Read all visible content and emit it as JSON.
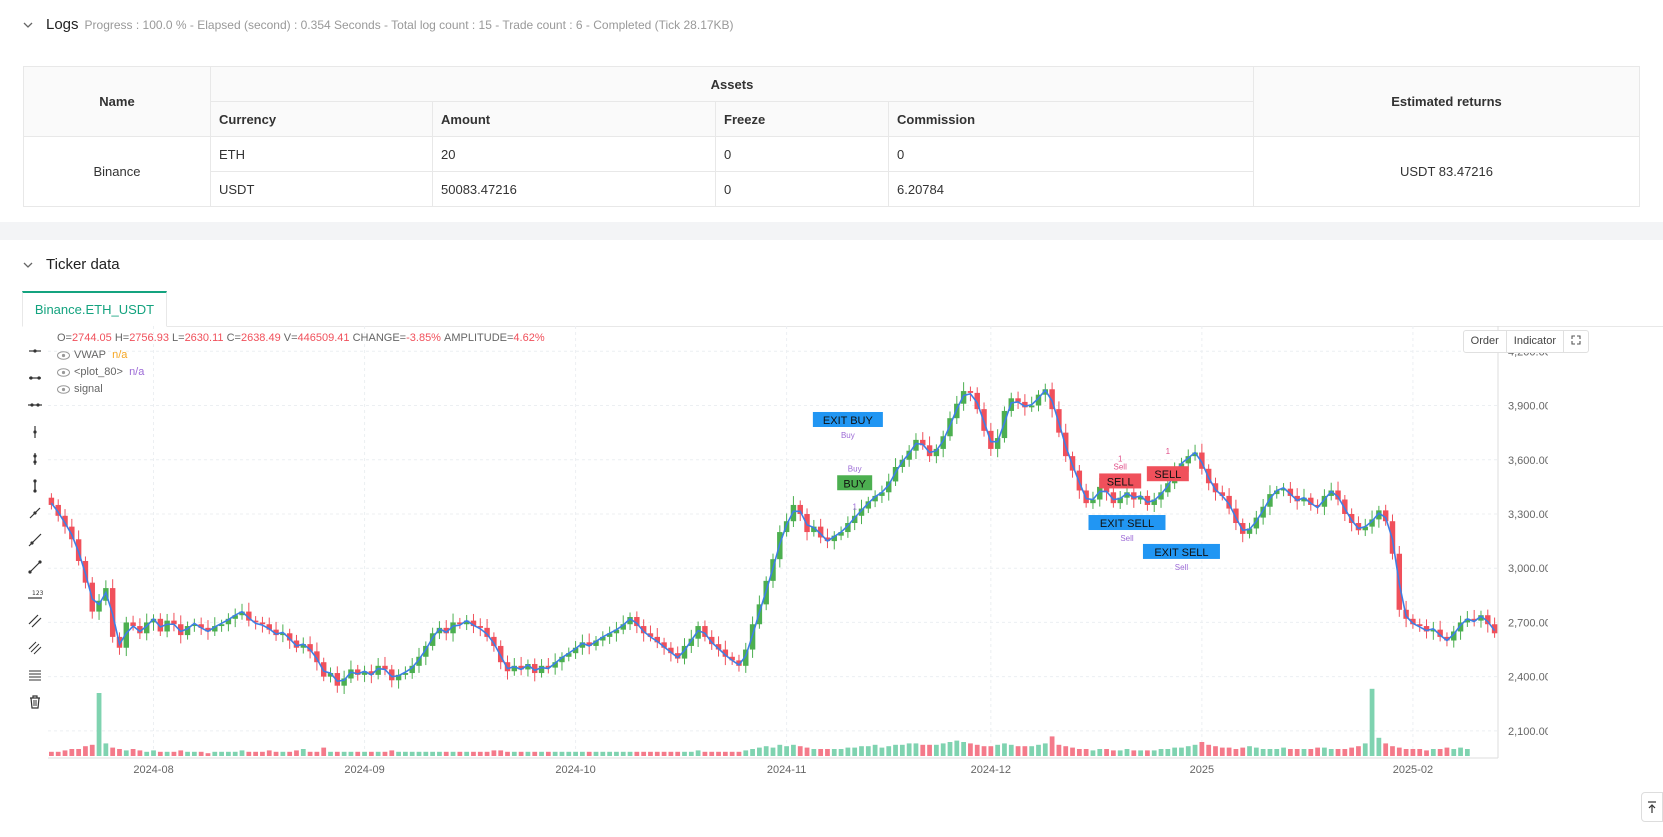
{
  "logs": {
    "title": "Logs",
    "stats": "Progress : 100.0 % - Elapsed (second) : 0.354  Seconds - Total log count : 15 - Trade count : 6 - Completed (Tick 28.17KB)"
  },
  "assets_table": {
    "col_name": "Name",
    "col_assets": "Assets",
    "col_returns": "Estimated returns",
    "col_currency": "Currency",
    "col_amount": "Amount",
    "col_freeze": "Freeze",
    "col_commission": "Commission",
    "exchange": "Binance",
    "returns": "USDT 83.47216",
    "rows": [
      {
        "currency": "ETH",
        "amount": "20",
        "freeze": "0",
        "commission": "0"
      },
      {
        "currency": "USDT",
        "amount": "50083.47216",
        "freeze": "0",
        "commission": "6.20784"
      }
    ]
  },
  "ticker": {
    "title": "Ticker data",
    "tab": "Binance.ETH_USDT"
  },
  "chart_controls": {
    "order": "Order",
    "indicator": "Indicator"
  },
  "legend": {
    "o_label": "O=",
    "o": "2744.05",
    "h_label": "H=",
    "h": "2756.93",
    "l_label": "L=",
    "l": "2630.11",
    "c_label": "C=",
    "c": "2638.49",
    "v_label": "V=",
    "v": "446509.41",
    "change_label": "CHANGE=",
    "change": "-3.85%",
    "amp_label": "AMPLITUDE=",
    "amp": "4.62%",
    "series": [
      {
        "name": "VWAP",
        "value": "n/a",
        "color": "#f5a623"
      },
      {
        "name": "<plot_80>",
        "value": "n/a",
        "color": "#9c6ad6"
      },
      {
        "name": "signal",
        "value": ""
      }
    ]
  },
  "chart_data": {
    "type": "candlestick",
    "symbol": "Binance.ETH_USDT",
    "y_ticks": [
      "4,200.00",
      "3,900.00",
      "3,600.00",
      "3,300.00",
      "3,000.00",
      "2,700.00",
      "2,400.00",
      "2,100.00"
    ],
    "ylim": [
      1950,
      4340
    ],
    "x_ticks": [
      "2024-08",
      "2024-09",
      "2024-10",
      "2024-11",
      "2024-12",
      "2025",
      "2025-02"
    ],
    "x_tick_index": [
      15,
      46,
      77,
      108,
      138,
      169,
      200
    ],
    "closes": [
      3350,
      3290,
      3230,
      3160,
      3040,
      2920,
      2760,
      2820,
      2890,
      2620,
      2560,
      2700,
      2680,
      2640,
      2700,
      2720,
      2650,
      2710,
      2690,
      2630,
      2680,
      2690,
      2670,
      2650,
      2680,
      2690,
      2720,
      2740,
      2760,
      2710,
      2700,
      2690,
      2660,
      2630,
      2640,
      2600,
      2560,
      2580,
      2540,
      2480,
      2400,
      2420,
      2350,
      2390,
      2440,
      2410,
      2430,
      2410,
      2460,
      2440,
      2380,
      2410,
      2420,
      2460,
      2510,
      2570,
      2640,
      2670,
      2640,
      2700,
      2690,
      2710,
      2680,
      2670,
      2620,
      2570,
      2480,
      2430,
      2460,
      2440,
      2470,
      2420,
      2460,
      2450,
      2480,
      2510,
      2530,
      2560,
      2590,
      2570,
      2600,
      2620,
      2640,
      2660,
      2690,
      2730,
      2680,
      2640,
      2620,
      2590,
      2560,
      2530,
      2500,
      2570,
      2610,
      2680,
      2620,
      2580,
      2550,
      2510,
      2490,
      2460,
      2550,
      2690,
      2800,
      2930,
      3050,
      3200,
      3260,
      3350,
      3300,
      3200,
      3230,
      3170,
      3150,
      3180,
      3200,
      3250,
      3290,
      3330,
      3370,
      3400,
      3420,
      3480,
      3560,
      3600,
      3650,
      3710,
      3680,
      3620,
      3660,
      3730,
      3830,
      3910,
      3980,
      3970,
      3880,
      3760,
      3660,
      3720,
      3870,
      3940,
      3920,
      3890,
      3900,
      3960,
      3990,
      3880,
      3750,
      3620,
      3540,
      3430,
      3360,
      3380,
      3450,
      3420,
      3360,
      3390,
      3420,
      3380,
      3400,
      3350,
      3380,
      3420,
      3470,
      3560,
      3580,
      3620,
      3640,
      3550,
      3470,
      3420,
      3400,
      3330,
      3250,
      3190,
      3220,
      3280,
      3340,
      3410,
      3430,
      3440,
      3400,
      3370,
      3390,
      3350,
      3340,
      3400,
      3430,
      3380,
      3300,
      3250,
      3210,
      3230,
      3270,
      3320,
      3260,
      3080,
      2770,
      2720,
      2690,
      2680,
      2650,
      2660,
      2620,
      2600,
      2650,
      2700,
      2720,
      2710,
      2740,
      2690,
      2640
    ],
    "volumes": [
      0.3,
      0.3,
      0.4,
      0.5,
      0.5,
      0.7,
      0.8,
      4.5,
      0.9,
      0.6,
      0.5,
      0.4,
      0.5,
      0.4,
      0.3,
      0.4,
      0.3,
      0.3,
      0.3,
      0.4,
      0.3,
      0.3,
      0.3,
      0.2,
      0.3,
      0.3,
      0.3,
      0.3,
      0.4,
      0.3,
      0.3,
      0.3,
      0.4,
      0.3,
      0.3,
      0.3,
      0.4,
      0.5,
      0.3,
      0.3,
      0.6,
      0.3,
      0.3,
      0.3,
      0.3,
      0.3,
      0.3,
      0.3,
      0.3,
      0.3,
      0.4,
      0.3,
      0.3,
      0.3,
      0.3,
      0.3,
      0.3,
      0.3,
      0.3,
      0.3,
      0.3,
      0.3,
      0.3,
      0.3,
      0.3,
      0.4,
      0.4,
      0.3,
      0.3,
      0.3,
      0.3,
      0.3,
      0.3,
      0.3,
      0.3,
      0.3,
      0.3,
      0.3,
      0.3,
      0.3,
      0.3,
      0.3,
      0.3,
      0.3,
      0.3,
      0.3,
      0.3,
      0.3,
      0.3,
      0.3,
      0.3,
      0.3,
      0.3,
      0.3,
      0.3,
      0.4,
      0.3,
      0.3,
      0.3,
      0.3,
      0.3,
      0.3,
      0.4,
      0.5,
      0.6,
      0.7,
      0.6,
      0.8,
      0.7,
      0.8,
      0.7,
      0.6,
      0.5,
      0.5,
      0.5,
      0.5,
      0.5,
      0.6,
      0.6,
      0.7,
      0.7,
      0.8,
      0.6,
      0.7,
      0.8,
      0.8,
      0.9,
      0.9,
      0.8,
      0.8,
      0.8,
      0.9,
      1.0,
      1.1,
      1.0,
      0.9,
      0.8,
      0.7,
      0.7,
      0.8,
      0.9,
      0.8,
      0.7,
      0.7,
      0.7,
      0.8,
      0.9,
      1.4,
      0.8,
      0.7,
      0.6,
      0.5,
      0.5,
      0.4,
      0.5,
      0.5,
      0.4,
      0.4,
      0.5,
      0.4,
      0.4,
      0.4,
      0.4,
      0.5,
      0.5,
      0.6,
      0.6,
      0.7,
      0.8,
      1.0,
      0.8,
      0.7,
      0.6,
      0.6,
      0.5,
      0.6,
      0.7,
      0.6,
      0.5,
      0.5,
      0.5,
      0.6,
      0.5,
      0.5,
      0.5,
      0.5,
      0.6,
      0.6,
      0.5,
      0.5,
      0.5,
      0.6,
      0.7,
      0.9,
      4.8,
      1.3,
      0.9,
      0.7,
      0.6,
      0.5,
      0.5,
      0.5,
      0.4,
      0.5,
      0.5,
      0.6,
      0.5,
      0.6,
      0.5
    ],
    "vwap_color": "#3d7fe6",
    "up_color": "#4caf50",
    "down_color": "#f0505b",
    "annotations": [
      {
        "label": "EXIT BUY",
        "sub": "Buy",
        "bar": 117,
        "price": 3820,
        "kind": "exit"
      },
      {
        "label": "BUY",
        "sub": "Buy",
        "sub2": "1",
        "bar": 118,
        "price": 3470,
        "kind": "buy"
      },
      {
        "label": "SELL",
        "sub": "Sell",
        "sub2": "1",
        "bar": 157,
        "price": 3480,
        "kind": "sell"
      },
      {
        "label": "SELL",
        "sub": "",
        "sub2": "1",
        "bar": 164,
        "price": 3520,
        "kind": "sell"
      },
      {
        "label": "EXIT SELL",
        "sub": "Sell",
        "bar": 158,
        "price": 3250,
        "kind": "exit"
      },
      {
        "label": "EXIT SELL",
        "sub": "Sell",
        "bar": 166,
        "price": 3090,
        "kind": "exit"
      }
    ]
  }
}
